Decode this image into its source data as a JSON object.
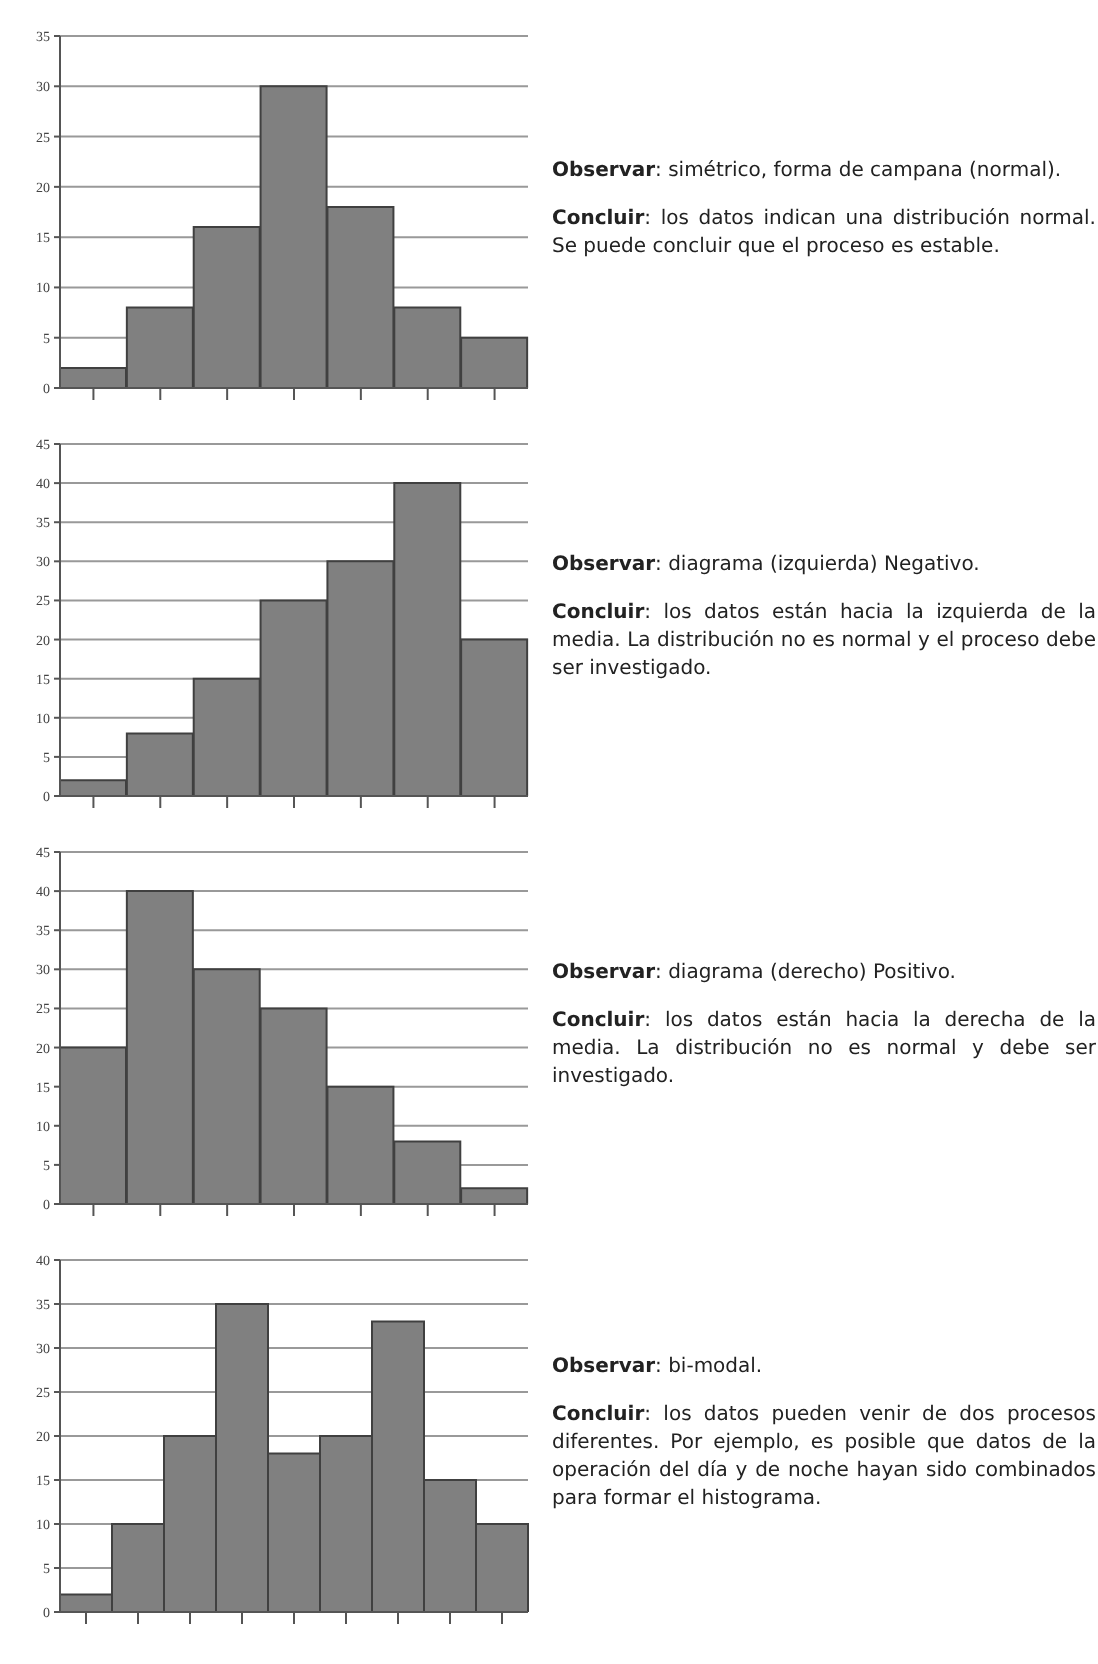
{
  "chart_data": [
    {
      "type": "bar",
      "categories": [
        null,
        null,
        null,
        null,
        null,
        null,
        null
      ],
      "values": [
        2,
        8,
        16,
        30,
        18,
        8,
        5
      ],
      "color": "#808080",
      "ylim": [
        0,
        35
      ],
      "yticks": [
        0,
        5,
        10,
        15,
        20,
        25,
        30,
        35
      ],
      "grid": "y",
      "annotations": [
        "Observar: simétrico, forma de campana (normal).",
        "Concluir: los datos indican una distribución normal. Se puede concluir que el proceso es estable."
      ]
    },
    {
      "type": "bar",
      "categories": [
        null,
        null,
        null,
        null,
        null,
        null,
        null
      ],
      "values": [
        2,
        8,
        15,
        25,
        30,
        40,
        20
      ],
      "color": "#808080",
      "ylim": [
        0,
        45
      ],
      "yticks": [
        0,
        5,
        10,
        15,
        20,
        25,
        30,
        35,
        40,
        45
      ],
      "grid": "y",
      "annotations": [
        "Observar: diagrama (izquierda) Negativo.",
        "Concluir: los datos están hacia la izquierda de la media. La distribución no es normal y el proceso debe ser investigado."
      ]
    },
    {
      "type": "bar",
      "categories": [
        null,
        null,
        null,
        null,
        null,
        null,
        null
      ],
      "values": [
        20,
        40,
        30,
        25,
        15,
        8,
        2
      ],
      "color": "#808080",
      "ylim": [
        0,
        45
      ],
      "yticks": [
        0,
        5,
        10,
        15,
        20,
        25,
        30,
        35,
        40,
        45
      ],
      "grid": "y",
      "annotations": [
        "Observar: diagrama (derecho) Positivo.",
        "Concluir: los datos están hacia la derecha de la media. La distribución no es normal y debe ser investigado."
      ]
    },
    {
      "type": "bar",
      "categories": [
        null,
        null,
        null,
        null,
        null,
        null,
        null,
        null,
        null
      ],
      "values": [
        2,
        10,
        20,
        35,
        18,
        20,
        33,
        15,
        10
      ],
      "color": "#808080",
      "ylim": [
        0,
        40
      ],
      "yticks": [
        0,
        5,
        10,
        15,
        20,
        25,
        30,
        35,
        40
      ],
      "grid": "y",
      "annotations": [
        "Observar: bi-modal.",
        "Concluir: los datos pueden venir de dos procesos diferentes. Por ejemplo, es posible que datos de la operación del día y de noche hayan sido combinados para formar el histograma."
      ]
    }
  ]
}
